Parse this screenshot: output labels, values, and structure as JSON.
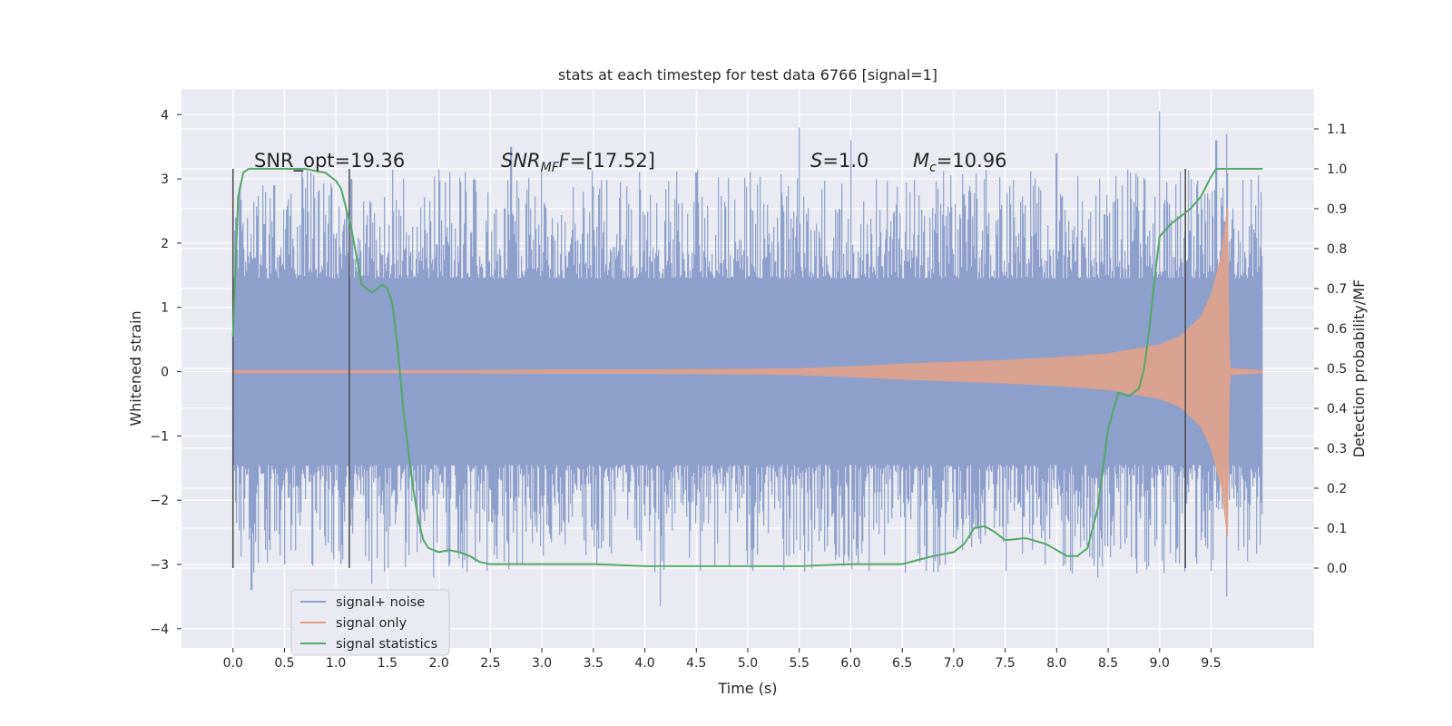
{
  "chart_data": {
    "type": "line",
    "title": "stats at each timestep for test data 6766 [signal=1]",
    "xlabel": "Time (s)",
    "ylabel": "Whitened strain",
    "y2label": "Detection probability/MF",
    "xlim": [
      -0.5,
      10.5
    ],
    "ylim": [
      -4.3,
      4.4
    ],
    "y2lim": [
      -0.2,
      1.2
    ],
    "x_ticks": [
      "0.0",
      "0.5",
      "1.0",
      "1.5",
      "2.0",
      "2.5",
      "3.0",
      "3.5",
      "4.0",
      "4.5",
      "5.0",
      "5.5",
      "6.0",
      "6.5",
      "7.0",
      "7.5",
      "8.0",
      "8.5",
      "9.0",
      "9.5"
    ],
    "y_ticks": [
      "4",
      "3",
      "2",
      "1",
      "0",
      "−1",
      "−2",
      "−3",
      "−4"
    ],
    "y2_ticks": [
      "1.1",
      "1.0",
      "0.9",
      "0.8",
      "0.7",
      "0.6",
      "0.5",
      "0.4",
      "0.3",
      "0.2",
      "0.1",
      "0.0"
    ],
    "grid": true,
    "legend_position": "lower-left",
    "annotations": {
      "snr_opt": "SNR_opt=19.36",
      "snr_mf_prefix": "SNR",
      "snr_mf_sub": "MF",
      "snr_mf_value": "=[17.52]",
      "s_prefix": "S",
      "s_value": "=1.0",
      "mc_prefix": "M",
      "mc_sub": "c",
      "mc_value": "=10.96"
    },
    "series": [
      {
        "name": "signal+ noise",
        "color": "#8da0cb",
        "x_range": [
          0,
          10.0
        ],
        "typical_amplitude": 1.3,
        "peak_highs": [
          [
            0.03,
            2.4
          ],
          [
            0.4,
            2.9
          ],
          [
            1.15,
            3.0
          ],
          [
            2.7,
            3.5
          ],
          [
            3.4,
            2.8
          ],
          [
            4.5,
            3.1
          ],
          [
            5.5,
            3.8
          ],
          [
            6.0,
            3.6
          ],
          [
            7.3,
            3.0
          ],
          [
            8.0,
            3.4
          ],
          [
            9.0,
            4.05
          ],
          [
            9.55,
            3.6
          ],
          [
            9.65,
            3.7
          ]
        ],
        "peak_lows": [
          [
            0.18,
            -3.4
          ],
          [
            0.5,
            -3.0
          ],
          [
            1.35,
            -3.3
          ],
          [
            1.95,
            -3.2
          ],
          [
            4.15,
            -3.65
          ],
          [
            5.0,
            -3.0
          ],
          [
            8.4,
            -3.2
          ],
          [
            9.5,
            -3.1
          ],
          [
            9.65,
            -3.5
          ]
        ]
      },
      {
        "name": "signal only",
        "color": "#e1a18a",
        "x": [
          0,
          1,
          2,
          3,
          4,
          5,
          5.5,
          6,
          6.5,
          7,
          7.5,
          8,
          8.5,
          9,
          9.2,
          9.4,
          9.5,
          9.6,
          9.66,
          9.68,
          10.0
        ],
        "envelope": [
          0.02,
          0.02,
          0.02,
          0.03,
          0.03,
          0.04,
          0.05,
          0.08,
          0.12,
          0.15,
          0.18,
          0.22,
          0.28,
          0.42,
          0.55,
          0.85,
          1.2,
          1.8,
          2.6,
          0.05,
          0.02
        ]
      },
      {
        "name": "signal statistics",
        "color": "#55a868",
        "axis": "right",
        "x": [
          0.0,
          0.05,
          0.1,
          0.15,
          0.2,
          0.3,
          0.5,
          0.7,
          0.9,
          1.0,
          1.05,
          1.1,
          1.15,
          1.2,
          1.25,
          1.3,
          1.35,
          1.4,
          1.45,
          1.5,
          1.55,
          1.6,
          1.65,
          1.7,
          1.75,
          1.8,
          1.85,
          1.9,
          1.95,
          2.0,
          2.1,
          2.2,
          2.3,
          2.4,
          2.5,
          2.6,
          3.0,
          3.5,
          4.0,
          4.5,
          5.0,
          5.5,
          6.0,
          6.5,
          6.8,
          7.0,
          7.1,
          7.2,
          7.3,
          7.4,
          7.5,
          7.7,
          7.9,
          8.1,
          8.2,
          8.3,
          8.4,
          8.5,
          8.6,
          8.7,
          8.8,
          8.85,
          8.9,
          8.95,
          9.0,
          9.1,
          9.2,
          9.3,
          9.4,
          9.5,
          9.55,
          9.6,
          10.0
        ],
        "values": [
          0.58,
          0.93,
          0.99,
          1.0,
          1.0,
          1.0,
          1.0,
          1.0,
          0.99,
          0.97,
          0.95,
          0.9,
          0.85,
          0.78,
          0.71,
          0.7,
          0.69,
          0.7,
          0.71,
          0.7,
          0.66,
          0.55,
          0.41,
          0.3,
          0.2,
          0.12,
          0.07,
          0.05,
          0.045,
          0.04,
          0.045,
          0.04,
          0.03,
          0.015,
          0.01,
          0.01,
          0.01,
          0.01,
          0.005,
          0.005,
          0.005,
          0.005,
          0.01,
          0.01,
          0.03,
          0.04,
          0.06,
          0.1,
          0.105,
          0.09,
          0.07,
          0.075,
          0.06,
          0.03,
          0.03,
          0.05,
          0.15,
          0.35,
          0.44,
          0.43,
          0.45,
          0.5,
          0.6,
          0.72,
          0.83,
          0.86,
          0.88,
          0.9,
          0.93,
          0.98,
          1.0,
          1.0,
          1.0
        ]
      }
    ],
    "vertical_markers_x": [
      0.0,
      1.13,
      9.25
    ]
  }
}
